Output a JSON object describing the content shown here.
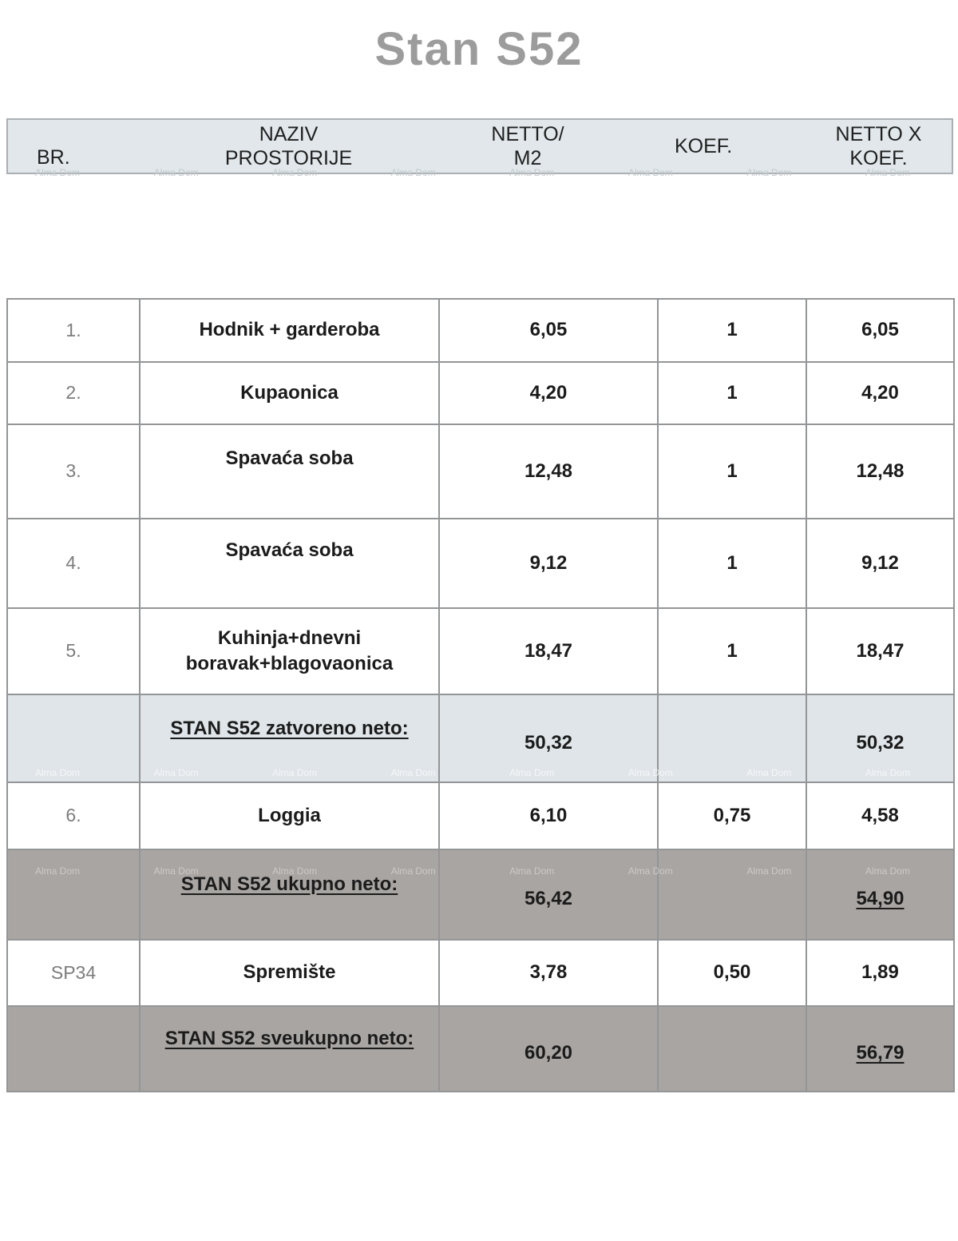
{
  "title": "Stan S52",
  "watermark": "Alma Dom",
  "colors": {
    "title_color": "#9c9c9c",
    "header_bg": "#e1e7ea",
    "subtotal_light_bg": "#dfe5e8",
    "subtotal_dark_bg": "#a9a5a2",
    "border_color": "#939597",
    "text_color": "#1b1b1b",
    "row_number_color": "#7d7d7d"
  },
  "table": {
    "header": {
      "br": "BR.",
      "naziv_line1": "NAZIV",
      "naziv_line2": "PROSTORIJE",
      "netto_line1": "NETTO/",
      "netto_line2": "M2",
      "koef": "KOEF.",
      "netto_koef_line1": "NETTO X",
      "netto_koef_line2": "KOEF."
    },
    "rows": [
      {
        "br": "1.",
        "name": "Hodnik + garderoba",
        "netto": "6,05",
        "koef": "1",
        "netto_koef": "6,05"
      },
      {
        "br": "2.",
        "name": "Kupaonica",
        "netto": "4,20",
        "koef": "1",
        "netto_koef": "4,20"
      },
      {
        "br": "3.",
        "name": "Spavaća soba",
        "netto": "12,48",
        "koef": "1",
        "netto_koef": "12,48"
      },
      {
        "br": "4.",
        "name": "Spavaća soba",
        "netto": "9,12",
        "koef": "1",
        "netto_koef": "9,12"
      },
      {
        "br": "5.",
        "name": "Kuhinja+dnevni boravak+blagovaonica",
        "netto": "18,47",
        "koef": "1",
        "netto_koef": "18,47"
      },
      {
        "br": "",
        "name": "STAN S52 zatvoreno neto:",
        "netto": "50,32",
        "koef": "",
        "netto_koef": "50,32",
        "row_type": "subtotal"
      },
      {
        "br": "6.",
        "name": "Loggia",
        "netto": "6,10",
        "koef": "0,75",
        "netto_koef": "4,58"
      },
      {
        "br": "",
        "name": "STAN S52 ukupno neto:",
        "netto": "56,42",
        "koef": "",
        "netto_koef": "54,90",
        "row_type": "total"
      },
      {
        "br": "SP34",
        "name": "Spremište",
        "netto": "3,78",
        "koef": "0,50",
        "netto_koef": "1,89"
      },
      {
        "br": "",
        "name": "STAN S52 sveukupno neto:",
        "netto": "60,20",
        "koef": "",
        "netto_koef": "56,79",
        "row_type": "grand_total"
      }
    ]
  }
}
